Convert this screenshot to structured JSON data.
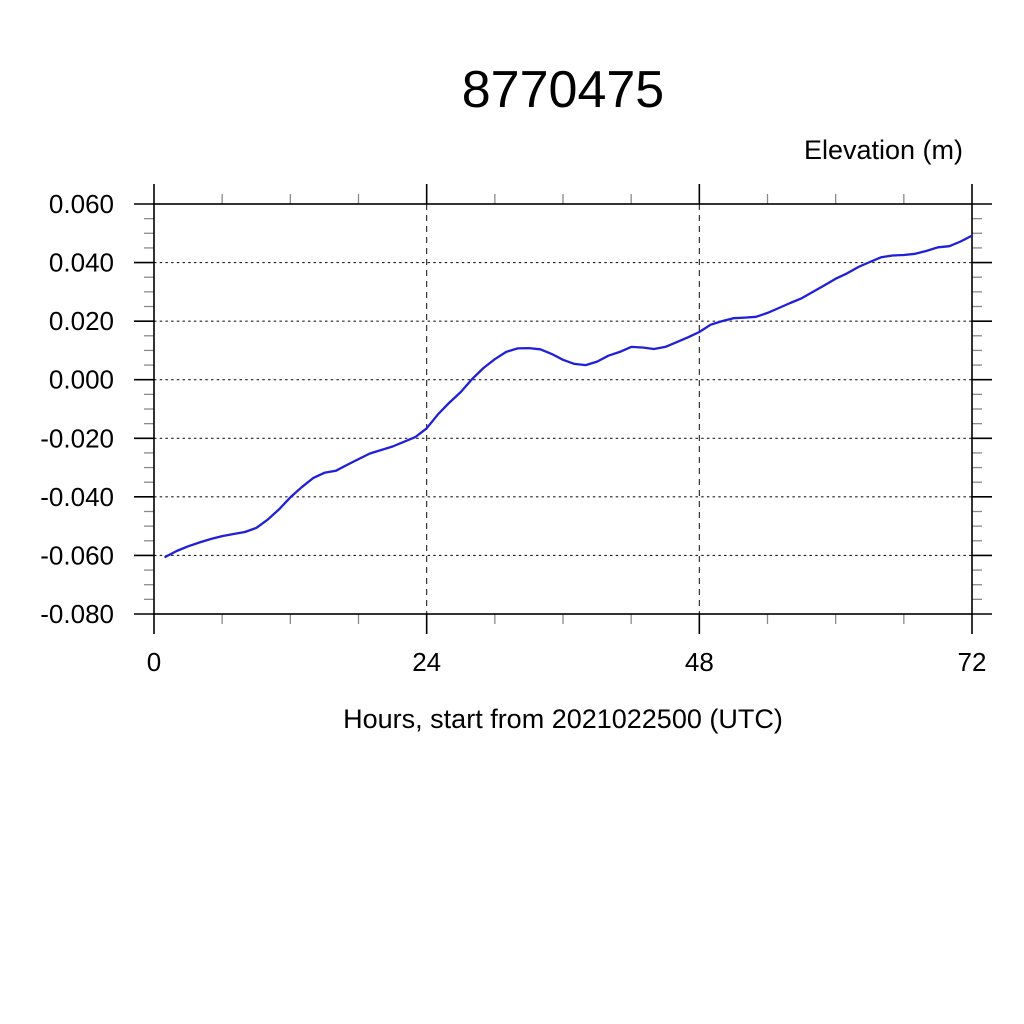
{
  "chart_data": {
    "type": "line",
    "title": "8770475",
    "y_axis_label": "Elevation (m)",
    "x_axis_label": "Hours, start from 2021022500 (UTC)",
    "x_range": [
      0,
      72
    ],
    "y_range": [
      -0.08,
      0.06
    ],
    "x_major_ticks": [
      0,
      24,
      48,
      72
    ],
    "x_tick_labels": [
      "0",
      "24",
      "48",
      "72"
    ],
    "x_minor_step": 6,
    "y_major_ticks": [
      0.06,
      0.04,
      0.02,
      0.0,
      -0.02,
      -0.04,
      -0.06,
      -0.08
    ],
    "y_tick_labels": [
      "0.060",
      "0.040",
      "0.020",
      "0.000",
      "-0.020",
      "-0.040",
      "-0.060",
      "-0.080"
    ],
    "y_minor_step": 0.005,
    "grid": {
      "horizontal_dotted_at": [
        0.04,
        0.02,
        0.0,
        -0.02,
        -0.04,
        -0.06
      ],
      "vertical_dashed_at": [
        24,
        48
      ],
      "grid_color": "#222222"
    },
    "line_color": "#2020d8",
    "frame_color": "#000000",
    "minor_tick_color": "#8a8a8a",
    "series": [
      {
        "name": "elevation",
        "x": [
          1,
          2,
          3,
          4,
          5,
          6,
          7,
          8,
          9,
          10,
          11,
          12,
          13,
          14,
          15,
          16,
          17,
          18,
          19,
          20,
          21,
          22,
          23,
          24,
          25,
          26,
          27,
          28,
          29,
          30,
          31,
          32,
          33,
          34,
          35,
          36,
          37,
          38,
          39,
          40,
          41,
          42,
          43,
          44,
          45,
          46,
          47,
          48,
          49,
          50,
          51,
          52,
          53,
          54,
          55,
          56,
          57,
          58,
          59,
          60,
          61,
          62,
          63,
          64,
          65,
          66,
          67,
          68,
          69,
          70,
          71,
          72
        ],
        "values": [
          -0.0605,
          -0.0585,
          -0.0569,
          -0.0556,
          -0.0544,
          -0.0534,
          -0.0527,
          -0.052,
          -0.0506,
          -0.0478,
          -0.0443,
          -0.0402,
          -0.0367,
          -0.0336,
          -0.0318,
          -0.0311,
          -0.0291,
          -0.0271,
          -0.0252,
          -0.024,
          -0.0228,
          -0.0212,
          -0.0196,
          -0.0166,
          -0.0118,
          -0.0078,
          -0.0042,
          0.0002,
          0.004,
          0.007,
          0.0095,
          0.0107,
          0.0108,
          0.0104,
          0.0088,
          0.0068,
          0.0054,
          0.005,
          0.0062,
          0.0082,
          0.0095,
          0.0112,
          0.011,
          0.0105,
          0.0112,
          0.0128,
          0.0145,
          0.0163,
          0.0188,
          0.02,
          0.021,
          0.0212,
          0.0215,
          0.0228,
          0.0245,
          0.0262,
          0.0278,
          0.03,
          0.0322,
          0.0345,
          0.0363,
          0.0385,
          0.0402,
          0.0418,
          0.0424,
          0.0426,
          0.043,
          0.044,
          0.0452,
          0.0456,
          0.0472,
          0.0492
        ]
      }
    ]
  }
}
